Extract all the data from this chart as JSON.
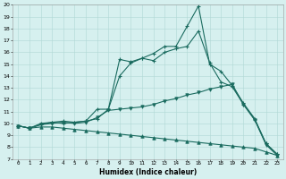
{
  "xlabel": "Humidex (Indice chaleur)",
  "x": [
    0,
    1,
    2,
    3,
    4,
    5,
    6,
    7,
    8,
    9,
    10,
    11,
    12,
    13,
    14,
    15,
    16,
    17,
    18,
    19,
    20,
    21,
    22,
    23
  ],
  "line1": [
    9.8,
    9.6,
    9.9,
    10.1,
    10.0,
    10.1,
    10.2,
    11.2,
    11.2,
    15.4,
    15.2,
    15.5,
    15.9,
    16.5,
    16.5,
    18.2,
    19.9,
    15.0,
    14.4,
    13.2,
    11.7,
    10.4,
    8.3,
    7.4
  ],
  "line2": [
    9.8,
    9.6,
    10.0,
    10.1,
    10.2,
    10.1,
    10.2,
    10.4,
    11.2,
    14.0,
    15.1,
    15.5,
    15.3,
    16.0,
    16.3,
    16.5,
    17.8,
    15.1,
    13.5,
    13.1,
    11.6,
    10.3,
    8.3,
    7.4
  ],
  "line3": [
    9.8,
    9.6,
    9.9,
    10.0,
    10.1,
    10.0,
    10.1,
    10.5,
    11.1,
    11.2,
    11.3,
    11.4,
    11.6,
    11.9,
    12.1,
    12.4,
    12.6,
    12.9,
    13.1,
    13.3,
    11.6,
    10.3,
    8.2,
    7.3
  ],
  "line4": [
    9.8,
    9.6,
    9.7,
    9.7,
    9.6,
    9.5,
    9.4,
    9.3,
    9.2,
    9.1,
    9.0,
    8.9,
    8.8,
    8.7,
    8.6,
    8.5,
    8.4,
    8.3,
    8.2,
    8.1,
    8.0,
    7.9,
    7.6,
    7.3
  ],
  "line_color": "#1a6b5f",
  "bg_color": "#d6f0ef",
  "grid_color": "#b0d8d5",
  "ylim": [
    7,
    20
  ],
  "xlim": [
    -0.5,
    23.5
  ],
  "yticks": [
    7,
    8,
    9,
    10,
    11,
    12,
    13,
    14,
    15,
    16,
    17,
    18,
    19,
    20
  ],
  "xticks": [
    0,
    1,
    2,
    3,
    4,
    5,
    6,
    7,
    8,
    9,
    10,
    11,
    12,
    13,
    14,
    15,
    16,
    17,
    18,
    19,
    20,
    21,
    22,
    23
  ]
}
